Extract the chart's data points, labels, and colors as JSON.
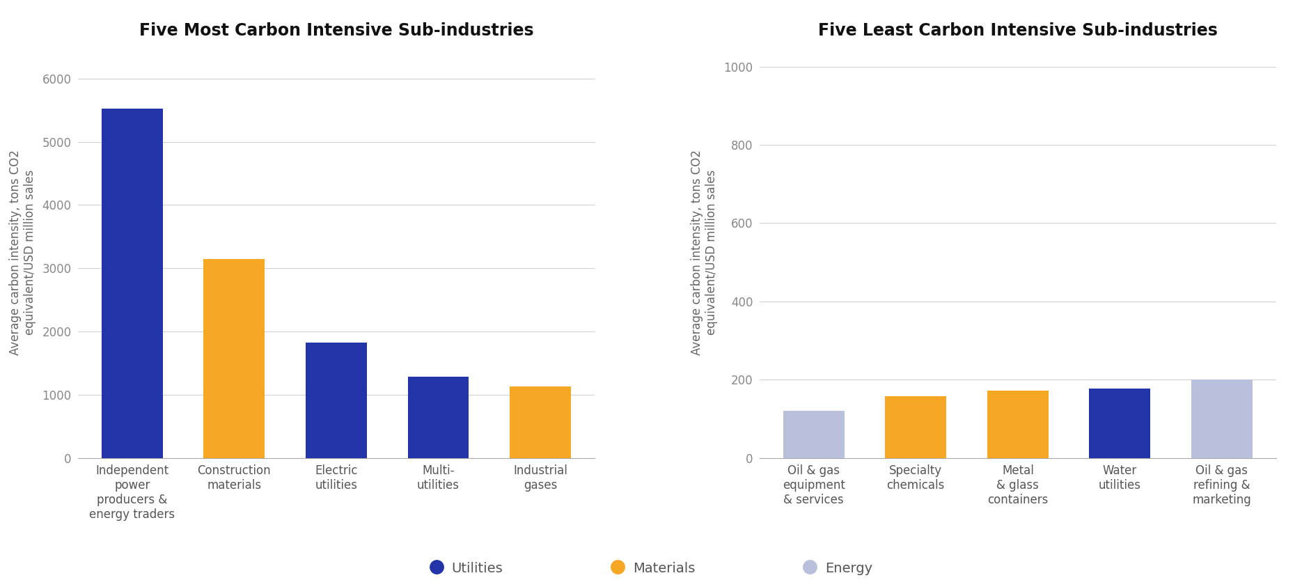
{
  "left_title": "Five Most Carbon Intensive Sub-industries",
  "right_title": "Five Least Carbon Intensive Sub-industries",
  "ylabel": "Average carbon intensity, tons CO2\nequivalent/USD million sales",
  "left_categories": [
    "Independent\npower\nproducers &\nenergy traders",
    "Construction\nmaterials",
    "Electric\nutilities",
    "Multi-\nutilities",
    "Industrial\ngases"
  ],
  "left_values": [
    5530,
    3150,
    1820,
    1280,
    1130
  ],
  "left_colors": [
    "#2234a8",
    "#f5a623",
    "#2234a8",
    "#2234a8",
    "#f5a623"
  ],
  "left_ylim": [
    0,
    6500
  ],
  "left_yticks": [
    0,
    1000,
    2000,
    3000,
    4000,
    5000,
    6000
  ],
  "right_categories": [
    "Oil & gas\nequipment\n& services",
    "Specialty\nchemicals",
    "Metal\n& glass\ncontainers",
    "Water\nutilities",
    "Oil & gas\nrefining &\nmarketing"
  ],
  "right_values": [
    120,
    157,
    172,
    178,
    200
  ],
  "right_colors": [
    "#b8c0dc",
    "#f5a623",
    "#f5a623",
    "#2234a8",
    "#b8c0dc"
  ],
  "right_ylim": [
    0,
    1050
  ],
  "right_yticks": [
    0,
    200,
    400,
    600,
    800,
    1000
  ],
  "legend_labels": [
    "Utilities",
    "Materials",
    "Energy"
  ],
  "legend_colors": [
    "#2234a8",
    "#f5a623",
    "#b8c0dc"
  ],
  "background_color": "#ffffff",
  "grid_color": "#d0d0d0",
  "title_fontsize": 17,
  "axis_label_fontsize": 12,
  "tick_fontsize": 12,
  "legend_fontsize": 14
}
